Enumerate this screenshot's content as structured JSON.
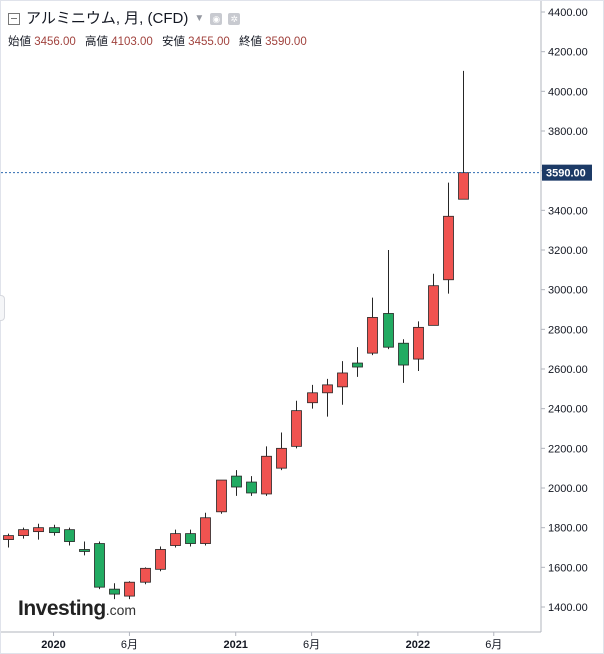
{
  "header": {
    "title": "アルミニウム, 月, (CFD)",
    "ohlc": [
      {
        "label": "始値",
        "value": "3456.00"
      },
      {
        "label": "高値",
        "value": "4103.00"
      },
      {
        "label": "安値",
        "value": "3455.00"
      },
      {
        "label": "終値",
        "value": "3590.00"
      }
    ],
    "icons": [
      "collapse-icon",
      "dropdown-icon",
      "eye-icon",
      "settings-icon"
    ]
  },
  "logo": {
    "text": "Investing",
    "suffix": ".com"
  },
  "colors": {
    "up": "#f05350",
    "down": "#22ab62",
    "wick": "#262626",
    "price_line": "#2e6bb0",
    "price_tag": "#1c3a66"
  },
  "chart_data": {
    "type": "candlestick",
    "y_axis": {
      "ylim": [
        1330,
        4450
      ],
      "ticks": [
        "1400.00",
        "1600.00",
        "1800.00",
        "2000.00",
        "2200.00",
        "2400.00",
        "2600.00",
        "2800.00",
        "3000.00",
        "3200.00",
        "3400.00",
        "3600.00",
        "3800.00",
        "4000.00",
        "4200.00",
        "4400.00"
      ],
      "position": "right"
    },
    "x_axis": {
      "ticks": [
        {
          "label": "2020",
          "date": "2020-01"
        },
        {
          "label": "6月",
          "date": "2020-06"
        },
        {
          "label": "2021",
          "date": "2021-01"
        },
        {
          "label": "6月",
          "date": "2021-06"
        },
        {
          "label": "2022",
          "date": "2022-01"
        },
        {
          "label": "6月",
          "date": "2022-06"
        }
      ]
    },
    "last_price": {
      "value": 3590,
      "label": "3590.00"
    },
    "candles": [
      {
        "date": "2019-10",
        "open": 1740,
        "high": 1770,
        "low": 1700,
        "close": 1760
      },
      {
        "date": "2019-11",
        "open": 1760,
        "high": 1800,
        "low": 1745,
        "close": 1790
      },
      {
        "date": "2019-12",
        "open": 1780,
        "high": 1820,
        "low": 1740,
        "close": 1800
      },
      {
        "date": "2020-01",
        "open": 1800,
        "high": 1815,
        "low": 1760,
        "close": 1775
      },
      {
        "date": "2020-02",
        "open": 1790,
        "high": 1800,
        "low": 1710,
        "close": 1730
      },
      {
        "date": "2020-03",
        "open": 1690,
        "high": 1730,
        "low": 1660,
        "close": 1680
      },
      {
        "date": "2020-04",
        "open": 1720,
        "high": 1730,
        "low": 1490,
        "close": 1500
      },
      {
        "date": "2020-05",
        "open": 1490,
        "high": 1520,
        "low": 1440,
        "close": 1465
      },
      {
        "date": "2020-06",
        "open": 1455,
        "high": 1530,
        "low": 1440,
        "close": 1525
      },
      {
        "date": "2020-07",
        "open": 1525,
        "high": 1600,
        "low": 1515,
        "close": 1595
      },
      {
        "date": "2020-08",
        "open": 1590,
        "high": 1705,
        "low": 1580,
        "close": 1690
      },
      {
        "date": "2020-09",
        "open": 1710,
        "high": 1790,
        "low": 1700,
        "close": 1770
      },
      {
        "date": "2020-10",
        "open": 1770,
        "high": 1790,
        "low": 1705,
        "close": 1720
      },
      {
        "date": "2020-11",
        "open": 1720,
        "high": 1875,
        "low": 1710,
        "close": 1850
      },
      {
        "date": "2020-12",
        "open": 1880,
        "high": 2040,
        "low": 1870,
        "close": 2040
      },
      {
        "date": "2021-01",
        "open": 2060,
        "high": 2090,
        "low": 1960,
        "close": 2005
      },
      {
        "date": "2021-02",
        "open": 2030,
        "high": 2060,
        "low": 1960,
        "close": 1975
      },
      {
        "date": "2021-03",
        "open": 1970,
        "high": 2210,
        "low": 1960,
        "close": 2160
      },
      {
        "date": "2021-04",
        "open": 2100,
        "high": 2280,
        "low": 2090,
        "close": 2200
      },
      {
        "date": "2021-05",
        "open": 2210,
        "high": 2440,
        "low": 2200,
        "close": 2390
      },
      {
        "date": "2021-06",
        "open": 2430,
        "high": 2520,
        "low": 2400,
        "close": 2480
      },
      {
        "date": "2021-07",
        "open": 2480,
        "high": 2550,
        "low": 2360,
        "close": 2520
      },
      {
        "date": "2021-08",
        "open": 2510,
        "high": 2640,
        "low": 2420,
        "close": 2580
      },
      {
        "date": "2021-09",
        "open": 2630,
        "high": 2710,
        "low": 2560,
        "close": 2610
      },
      {
        "date": "2021-10",
        "open": 2680,
        "high": 2960,
        "low": 2670,
        "close": 2860
      },
      {
        "date": "2021-11",
        "open": 2880,
        "high": 3200,
        "low": 2700,
        "close": 2710
      },
      {
        "date": "2021-12",
        "open": 2730,
        "high": 2750,
        "low": 2530,
        "close": 2620
      },
      {
        "date": "2022-01",
        "open": 2650,
        "high": 2840,
        "low": 2590,
        "close": 2810
      },
      {
        "date": "2022-02",
        "open": 2820,
        "high": 3080,
        "low": 2820,
        "close": 3020
      },
      {
        "date": "2022-03",
        "open": 3050,
        "high": 3540,
        "low": 2980,
        "close": 3370
      },
      {
        "date": "2022-04",
        "open": 3456,
        "high": 4103,
        "low": 3455,
        "close": 3590
      }
    ]
  }
}
